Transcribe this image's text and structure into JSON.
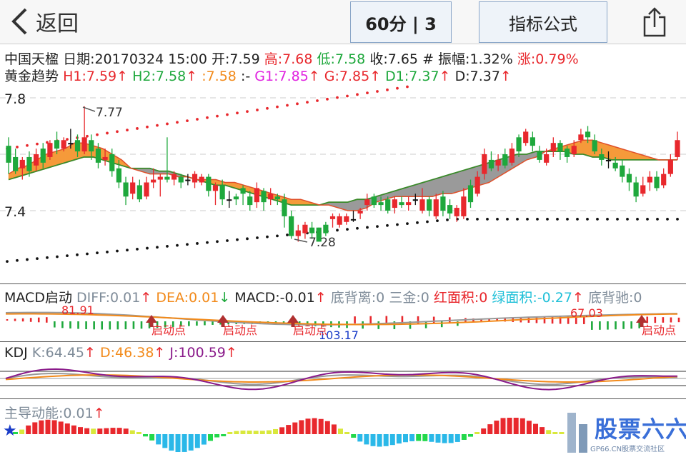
{
  "nav": {
    "back_label": "返回",
    "period_label": "60分 | 3",
    "formula_label": "指标公式"
  },
  "quote": {
    "name": "中国天楹",
    "date": "日期:20170324 15:00",
    "open": "开:7.59",
    "high": "高:7.68",
    "low": "低:7.58",
    "close": "收:7.65",
    "amplitude": "# 振幅:1.32%",
    "change": "涨:0.79%"
  },
  "trend": {
    "name": "黄金趋势",
    "h1": "H1:7.59",
    "h2": "H2:7.58",
    "mid": ":7.58",
    "sep": ":-",
    "g1": "G1:7.85",
    "g": "G:7.85",
    "d1": "D1:7.37",
    "d": "D:7.37",
    "arrow": "↑"
  },
  "main_chart": {
    "ticks": [
      "7.8",
      "7.4"
    ],
    "high_label": "7.77",
    "low_label": "7.28"
  },
  "macd": {
    "name": "MACD启动",
    "diff": "DIFF:0.01",
    "dea": "DEA:0.01",
    "macd": "MACD:-0.01",
    "bottom_div": "底背离:0",
    "sanjin": "三金:0",
    "red_area": "红面积:0",
    "green_area": "绿面积:-0.27",
    "bottom_chi": "底背驰:0",
    "up": "↑",
    "down": "↓",
    "v1": "81.91",
    "v2": "103.17",
    "v3": "67.03",
    "launch_label": "启动点"
  },
  "kdj": {
    "name": "KDJ",
    "k": "K:64.45",
    "d": "D:46.38",
    "j": "J:100.59",
    "up": "↑"
  },
  "power": {
    "name": "主导动能:0.01",
    "up": "↑"
  },
  "watermark": {
    "text": "股票六六",
    "sub": "GP66.CN股票交流社区"
  },
  "colors": {
    "up": "#e8282d",
    "down": "#1ea83c",
    "gray_text": "#7f8c99",
    "orange": "#f28a1a",
    "purple": "#8a1a8a",
    "blue": "#1a3cc8",
    "cyan": "#20c0d8",
    "magenta": "#e020e0",
    "accent_border": "#8aa6c8"
  },
  "chart_data": {
    "type": "candlestick",
    "title": "中国天楹 60分",
    "ylim": [
      7.22,
      7.86
    ],
    "yticks": [
      7.8,
      7.4
    ],
    "candles": [
      [
        7.63,
        7.57,
        7.66,
        7.53
      ],
      [
        7.59,
        7.54,
        7.62,
        7.53
      ],
      [
        7.55,
        7.58,
        7.59,
        7.51
      ],
      [
        7.59,
        7.54,
        7.61,
        7.52
      ],
      [
        7.56,
        7.6,
        7.62,
        7.54
      ],
      [
        7.62,
        7.57,
        7.64,
        7.55
      ],
      [
        7.59,
        7.64,
        7.65,
        7.58
      ],
      [
        7.65,
        7.62,
        7.68,
        7.6
      ],
      [
        7.62,
        7.65,
        7.66,
        7.61
      ],
      [
        7.64,
        7.64,
        7.69,
        7.62
      ],
      [
        7.65,
        7.61,
        7.67,
        7.59
      ],
      [
        7.61,
        7.66,
        7.77,
        7.6
      ],
      [
        7.65,
        7.61,
        7.67,
        7.58
      ],
      [
        7.62,
        7.57,
        7.64,
        7.55
      ],
      [
        7.58,
        7.59,
        7.62,
        7.56
      ],
      [
        7.6,
        7.54,
        7.62,
        7.52
      ],
      [
        7.55,
        7.5,
        7.58,
        7.48
      ],
      [
        7.5,
        7.45,
        7.52,
        7.42
      ],
      [
        7.46,
        7.5,
        7.52,
        7.44
      ],
      [
        7.49,
        7.44,
        7.51,
        7.43
      ],
      [
        7.45,
        7.5,
        7.52,
        7.44
      ],
      [
        7.5,
        7.51,
        7.55,
        7.48
      ],
      [
        7.51,
        7.52,
        7.53,
        7.45
      ],
      [
        7.52,
        7.51,
        7.66,
        7.5
      ],
      [
        7.51,
        7.53,
        7.54,
        7.49
      ],
      [
        7.52,
        7.5,
        7.53,
        7.48
      ],
      [
        7.51,
        7.51,
        7.53,
        7.49
      ],
      [
        7.5,
        7.53,
        7.54,
        7.48
      ],
      [
        7.5,
        7.52,
        7.53,
        7.49
      ],
      [
        7.52,
        7.47,
        7.53,
        7.45
      ],
      [
        7.47,
        7.49,
        7.5,
        7.42
      ],
      [
        7.49,
        7.44,
        7.51,
        7.42
      ],
      [
        7.44,
        7.44,
        7.47,
        7.41
      ],
      [
        7.45,
        7.44,
        7.46,
        7.42
      ],
      [
        7.48,
        7.46,
        7.49,
        7.42
      ],
      [
        7.45,
        7.42,
        7.47,
        7.4
      ],
      [
        7.43,
        7.48,
        7.5,
        7.41
      ],
      [
        7.47,
        7.43,
        7.48,
        7.4
      ],
      [
        7.44,
        7.46,
        7.48,
        7.42
      ],
      [
        7.45,
        7.44,
        7.46,
        7.42
      ],
      [
        7.44,
        7.38,
        7.46,
        7.34
      ],
      [
        7.38,
        7.31,
        7.4,
        7.3
      ],
      [
        7.31,
        7.33,
        7.35,
        7.29
      ],
      [
        7.32,
        7.35,
        7.36,
        7.3
      ],
      [
        7.34,
        7.32,
        7.36,
        7.3
      ],
      [
        7.34,
        7.29,
        7.34,
        7.29
      ],
      [
        7.35,
        7.32,
        7.36,
        7.31
      ],
      [
        7.37,
        7.38,
        7.39,
        7.34
      ],
      [
        7.35,
        7.38,
        7.39,
        7.34
      ],
      [
        7.36,
        7.38,
        7.39,
        7.35
      ],
      [
        7.37,
        7.37,
        7.4,
        7.36
      ],
      [
        7.39,
        7.4,
        7.41,
        7.37
      ],
      [
        7.42,
        7.44,
        7.46,
        7.4
      ],
      [
        7.45,
        7.42,
        7.46,
        7.41
      ],
      [
        7.43,
        7.42,
        7.45,
        7.4
      ],
      [
        7.44,
        7.4,
        7.45,
        7.39
      ],
      [
        7.41,
        7.44,
        7.45,
        7.39
      ],
      [
        7.43,
        7.42,
        7.45,
        7.41
      ],
      [
        7.42,
        7.43,
        7.45,
        7.4
      ],
      [
        7.44,
        7.44,
        7.46,
        7.42
      ],
      [
        7.4,
        7.44,
        7.48,
        7.39
      ],
      [
        7.44,
        7.4,
        7.45,
        7.38
      ],
      [
        7.38,
        7.44,
        7.46,
        7.37
      ],
      [
        7.45,
        7.4,
        7.47,
        7.38
      ],
      [
        7.42,
        7.39,
        7.44,
        7.37
      ],
      [
        7.38,
        7.41,
        7.42,
        7.36
      ],
      [
        7.38,
        7.45,
        7.48,
        7.37
      ],
      [
        7.49,
        7.43,
        7.51,
        7.41
      ],
      [
        7.46,
        7.52,
        7.54,
        7.45
      ],
      [
        7.53,
        7.6,
        7.62,
        7.51
      ],
      [
        7.58,
        7.55,
        7.61,
        7.54
      ],
      [
        7.56,
        7.58,
        7.6,
        7.54
      ],
      [
        7.6,
        7.56,
        7.62,
        7.55
      ],
      [
        7.57,
        7.62,
        7.64,
        7.56
      ],
      [
        7.66,
        7.61,
        7.67,
        7.59
      ],
      [
        7.64,
        7.68,
        7.69,
        7.63
      ],
      [
        7.66,
        7.63,
        7.68,
        7.61
      ],
      [
        7.61,
        7.58,
        7.63,
        7.57
      ],
      [
        7.57,
        7.6,
        7.62,
        7.56
      ],
      [
        7.61,
        7.64,
        7.66,
        7.59
      ],
      [
        7.64,
        7.61,
        7.65,
        7.58
      ],
      [
        7.62,
        7.59,
        7.63,
        7.57
      ],
      [
        7.6,
        7.63,
        7.65,
        7.59
      ],
      [
        7.65,
        7.67,
        7.69,
        7.64
      ],
      [
        7.68,
        7.66,
        7.7,
        7.64
      ],
      [
        7.65,
        7.61,
        7.67,
        7.6
      ],
      [
        7.6,
        7.58,
        7.62,
        7.56
      ],
      [
        7.58,
        7.58,
        7.61,
        7.55
      ],
      [
        7.57,
        7.55,
        7.59,
        7.54
      ],
      [
        7.56,
        7.52,
        7.58,
        7.5
      ],
      [
        7.53,
        7.5,
        7.55,
        7.47
      ],
      [
        7.5,
        7.45,
        7.52,
        7.43
      ],
      [
        7.46,
        7.49,
        7.52,
        7.45
      ],
      [
        7.5,
        7.52,
        7.54,
        7.47
      ],
      [
        7.52,
        7.48,
        7.54,
        7.47
      ],
      [
        7.49,
        7.53,
        7.55,
        7.48
      ],
      [
        7.53,
        7.58,
        7.6,
        7.52
      ],
      [
        7.59,
        7.65,
        7.68,
        7.58
      ]
    ],
    "ma_fast": [
      7.53,
      7.55,
      7.56,
      7.58,
      7.6,
      7.61,
      7.62,
      7.64,
      7.64,
      7.63,
      7.62,
      7.6,
      7.58,
      7.55,
      7.54,
      7.53,
      7.53,
      7.53,
      7.52,
      7.52,
      7.51,
      7.51,
      7.51,
      7.5,
      7.5,
      7.49,
      7.48,
      7.47,
      7.46,
      7.45,
      7.44,
      7.44,
      7.43,
      7.42,
      7.42,
      7.41,
      7.4,
      7.4,
      7.41,
      7.43,
      7.44,
      7.45,
      7.45,
      7.45,
      7.45,
      7.45,
      7.46,
      7.46,
      7.47,
      7.48,
      7.49,
      7.5,
      7.52,
      7.54,
      7.56,
      7.58,
      7.59,
      7.61,
      7.62,
      7.63,
      7.64,
      7.65,
      7.65,
      7.64,
      7.63,
      7.62,
      7.61,
      7.6,
      7.59,
      7.58,
      7.58,
      7.58
    ],
    "ma_slow": [
      7.51,
      7.52,
      7.53,
      7.54,
      7.55,
      7.56,
      7.57,
      7.58,
      7.59,
      7.59,
      7.58,
      7.57,
      7.56,
      7.55,
      7.55,
      7.55,
      7.54,
      7.54,
      7.53,
      7.52,
      7.51,
      7.5,
      7.49,
      7.49,
      7.48,
      7.47,
      7.46,
      7.45,
      7.44,
      7.43,
      7.42,
      7.42,
      7.42,
      7.42,
      7.43,
      7.43,
      7.43,
      7.44,
      7.44,
      7.45,
      7.46,
      7.47,
      7.48,
      7.49,
      7.5,
      7.51,
      7.52,
      7.53,
      7.54,
      7.55,
      7.56,
      7.57,
      7.58,
      7.59,
      7.6,
      7.6,
      7.61,
      7.61,
      7.61,
      7.61,
      7.6,
      7.6,
      7.59,
      7.59,
      7.58,
      7.58,
      7.58,
      7.58,
      7.58,
      7.58,
      7.58,
      7.58
    ],
    "upper_dots": [
      7.62,
      7.85
    ],
    "lower_dots": [
      7.22,
      7.37
    ]
  }
}
